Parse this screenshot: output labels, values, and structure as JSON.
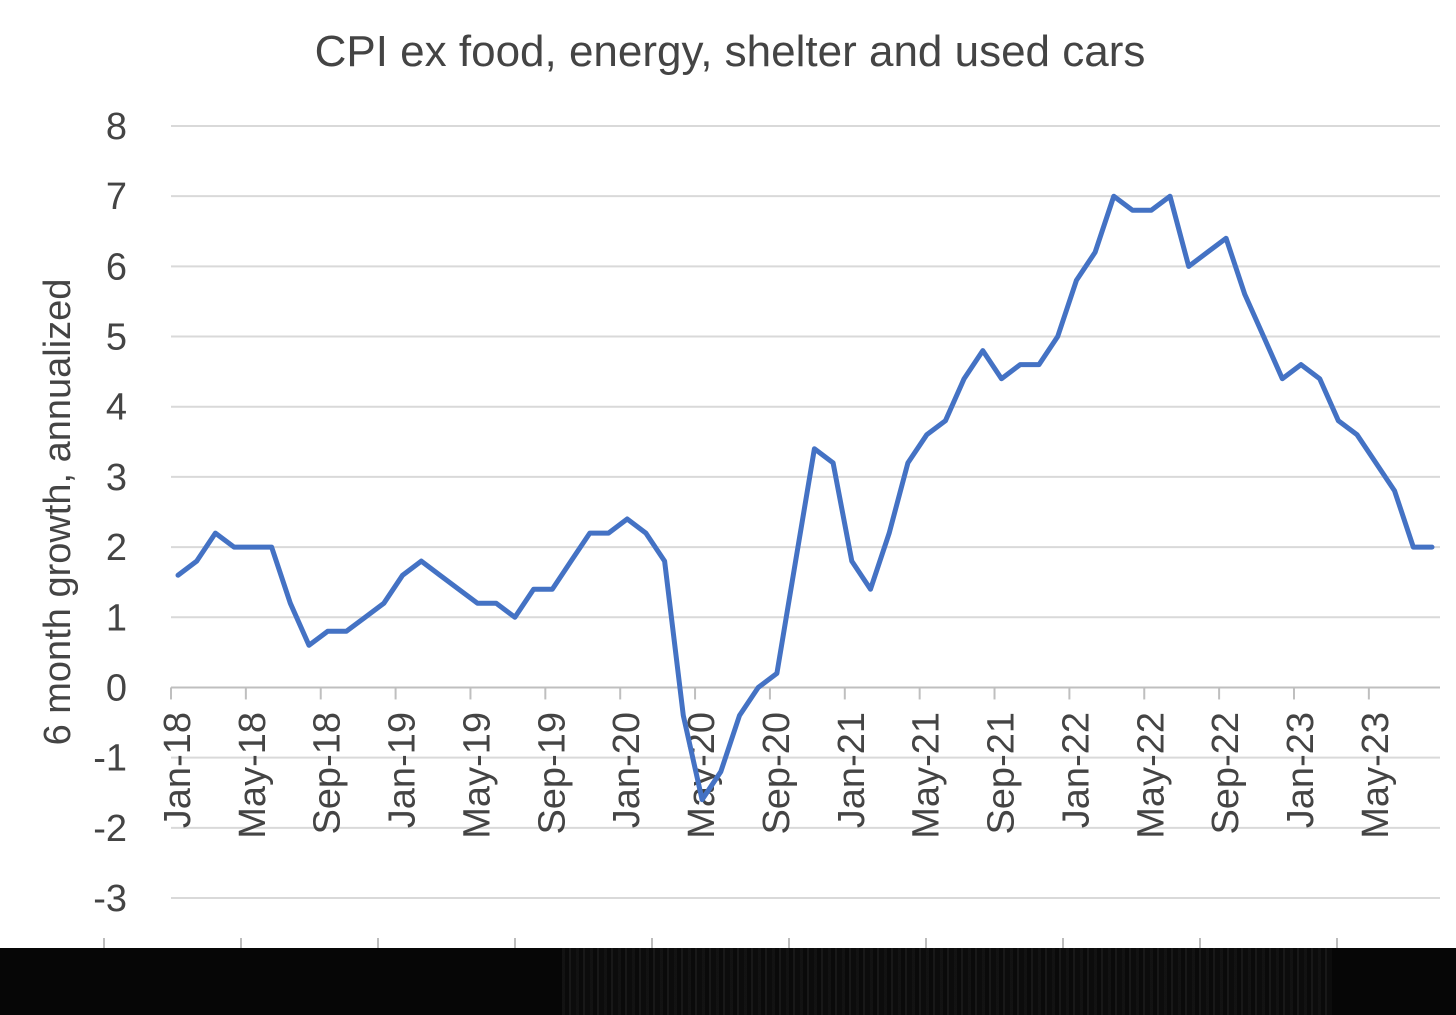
{
  "chart_data": {
    "type": "line",
    "title": "CPI ex food, energy, shelter and used cars",
    "xlabel": "",
    "ylabel": "6 month growth, annualized",
    "ylim": [
      -3,
      8
    ],
    "yticks": [
      "8",
      "7",
      "6",
      "5",
      "4",
      "3",
      "2",
      "1",
      "0",
      "-1",
      "-2",
      "-3"
    ],
    "x_tick_labels": [
      "Jan-18",
      "May-18",
      "Sep-18",
      "Jan-19",
      "May-19",
      "Sep-19",
      "Jan-20",
      "May-20",
      "Sep-20",
      "Jan-21",
      "May-21",
      "Sep-21",
      "Jan-22",
      "May-22",
      "Sep-22",
      "Jan-23",
      "May-23"
    ],
    "grid": true,
    "legend": "none",
    "series": [
      {
        "name": "CPI ex food, energy, shelter and used cars",
        "color": "#4472c4",
        "start": "Jan-18",
        "frequency": "monthly",
        "values": [
          1.6,
          1.8,
          2.2,
          2.0,
          2.0,
          2.0,
          1.2,
          0.6,
          0.8,
          0.8,
          1.0,
          1.2,
          1.6,
          1.8,
          1.6,
          1.4,
          1.2,
          1.2,
          1.0,
          1.4,
          1.4,
          1.8,
          2.2,
          2.2,
          2.4,
          2.2,
          1.8,
          -0.4,
          -1.6,
          -1.2,
          -0.4,
          0.0,
          0.2,
          1.8,
          3.4,
          3.2,
          1.8,
          1.4,
          2.2,
          3.2,
          3.6,
          3.8,
          4.4,
          4.8,
          4.4,
          4.6,
          4.6,
          5.0,
          5.8,
          6.2,
          7.0,
          6.8,
          6.8,
          7.0,
          6.0,
          6.2,
          6.4,
          5.6,
          5.0,
          4.4,
          4.6,
          4.4,
          3.8,
          3.6,
          3.2,
          2.8,
          2.0,
          2.0
        ]
      }
    ]
  }
}
